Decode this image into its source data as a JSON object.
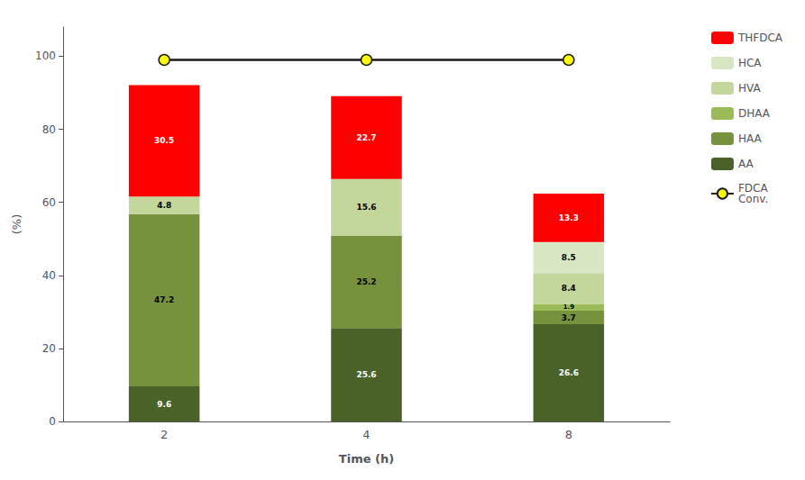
{
  "chart_data": {
    "type": "bar",
    "stacked": true,
    "data_labels": true,
    "categories": [
      "2",
      "4",
      "8"
    ],
    "xlabel": "Time (h)",
    "ylabel": "(%)",
    "ylim": [
      0,
      108
    ],
    "yticks": [
      0,
      20,
      40,
      60,
      80,
      100
    ],
    "grid": false,
    "legend": "right",
    "series": [
      {
        "name": "AA",
        "type": "bar",
        "color": "#4a6228",
        "values": [
          9.6,
          25.6,
          26.6
        ]
      },
      {
        "name": "HAA",
        "type": "bar",
        "color": "#76923c",
        "values": [
          47.2,
          25.2,
          3.7
        ]
      },
      {
        "name": "DHAA",
        "type": "bar",
        "color": "#9bbb59",
        "values": [
          0.0,
          0.0,
          1.9
        ]
      },
      {
        "name": "HVA",
        "type": "bar",
        "color": "#c3d69b",
        "values": [
          4.8,
          15.6,
          8.4
        ]
      },
      {
        "name": "HCA",
        "type": "bar",
        "color": "#d9e6c3",
        "values": [
          0.0,
          0.0,
          8.5
        ]
      },
      {
        "name": "THFDCA",
        "type": "bar",
        "color": "#ff0000",
        "values": [
          30.5,
          22.7,
          13.3
        ]
      },
      {
        "name": "FDCA\nConv.",
        "type": "line",
        "color": "#1a1a1a",
        "marker": "circle",
        "colors": [
          "#ffff00",
          "#ffff00",
          "#ffff00"
        ],
        "values": [
          99,
          99,
          99
        ]
      }
    ]
  }
}
